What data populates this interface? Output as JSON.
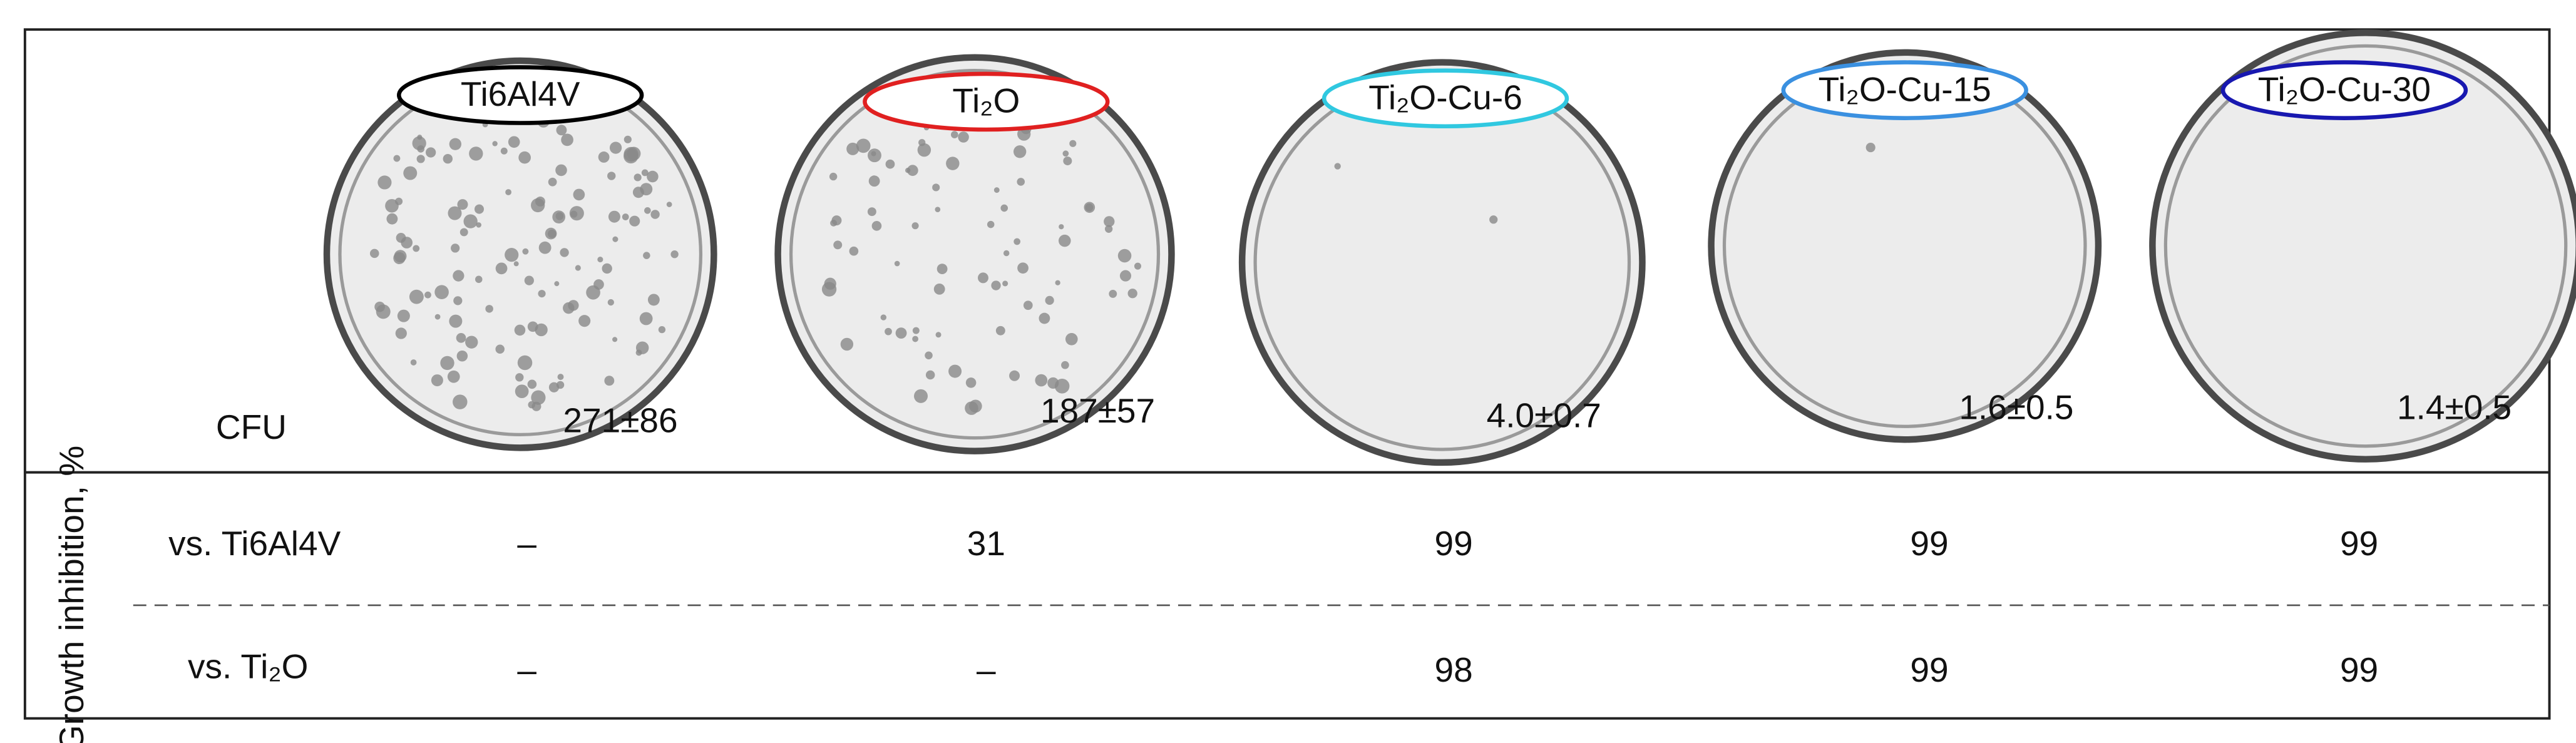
{
  "samples": [
    {
      "name": "Ti6Al4V",
      "cfu": "271±86",
      "vs_ti6al4v": "–",
      "vs_ti2o": "–"
    },
    {
      "name": "Ti₂O",
      "cfu": "187±57",
      "vs_ti6al4v": 31,
      "vs_ti2o": "–"
    },
    {
      "name": "Ti₂O-Cu-6",
      "cfu": "4.0±0.7",
      "vs_ti6al4v": 99,
      "vs_ti2o": 98
    },
    {
      "name": "Ti₂O-Cu-15",
      "cfu": "1.6±0.5",
      "vs_ti6al4v": 99,
      "vs_ti2o": 99
    },
    {
      "name": "Ti₂O-Cu-30",
      "cfu": "1.4±0.5",
      "vs_ti6al4v": 99,
      "vs_ti2o": 99
    }
  ],
  "cfu_label": "CFU",
  "row_group_label": "Growth inhibition, %",
  "row_labels": [
    "vs. Ti6Al4V",
    "vs. Ti₂O"
  ]
}
